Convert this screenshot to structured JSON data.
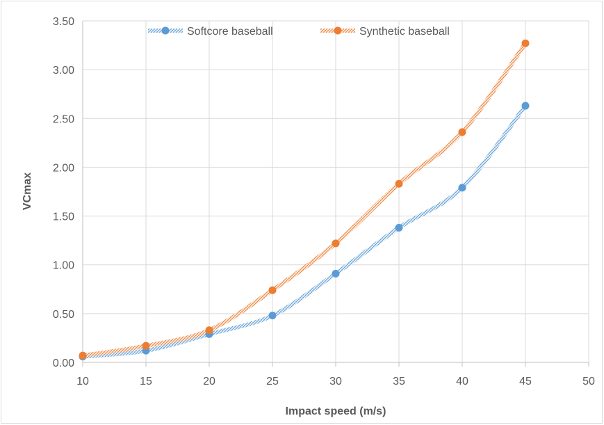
{
  "chart_data": {
    "type": "line",
    "title": "",
    "xlabel": "Impact speed (m/s)",
    "ylabel": "VCmax",
    "xlim": [
      10,
      50
    ],
    "ylim": [
      0,
      3.5
    ],
    "xticks": [
      "10",
      "15",
      "20",
      "25",
      "30",
      "35",
      "40",
      "45",
      "50"
    ],
    "yticks": [
      "0.00",
      "0.50",
      "1.00",
      "1.50",
      "2.00",
      "2.50",
      "3.00",
      "3.50"
    ],
    "grid": true,
    "legend_position": "top",
    "x": [
      10,
      15,
      20,
      25,
      30,
      35,
      40,
      45
    ],
    "series": [
      {
        "name": "Softcore baseball",
        "color": "#5b9bd5",
        "values": [
          0.06,
          0.12,
          0.29,
          0.48,
          0.91,
          1.38,
          1.79,
          2.63
        ]
      },
      {
        "name": "Synthetic baseball",
        "color": "#ed7d31",
        "values": [
          0.07,
          0.17,
          0.33,
          0.74,
          1.22,
          1.83,
          2.36,
          3.27
        ]
      }
    ]
  }
}
